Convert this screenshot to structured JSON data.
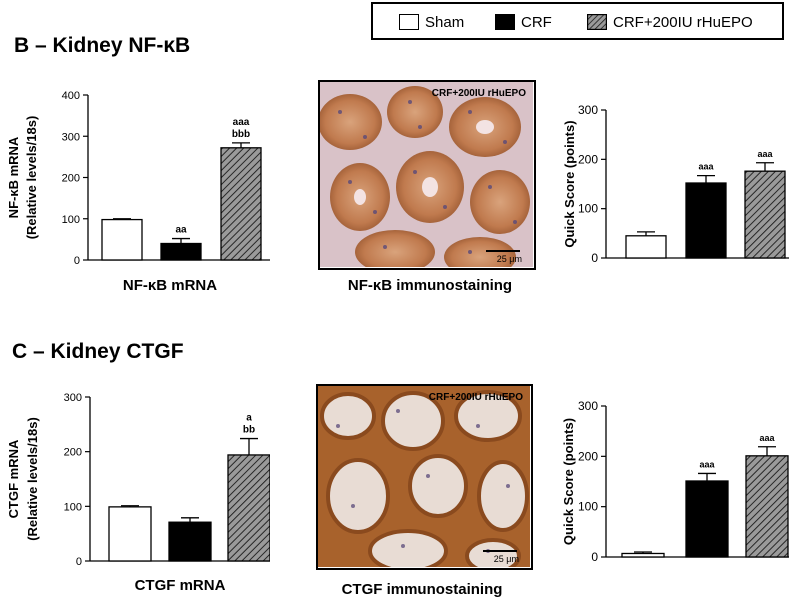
{
  "legend": [
    {
      "label": "Sham",
      "fill": "white"
    },
    {
      "label": "CRF",
      "fill": "black"
    },
    {
      "label": "CRF+200IU rHuEPO",
      "fill": "hatch"
    }
  ],
  "section_b": {
    "title": "B – Kidney NF-κB",
    "mrna_caption": "NF-κB mRNA",
    "stain_caption": "NF-κB immunostaining",
    "micro_label": "CRF+200IU rHuEPO",
    "scale_label": "25 μm"
  },
  "section_c": {
    "title": "C – Kidney CTGF",
    "mrna_caption": "CTGF  mRNA",
    "stain_caption": "CTGF  immunostaining",
    "micro_label": "CRF+200IU rHuEPO",
    "scale_label": "25 μm"
  },
  "colors": {
    "stain_background": "#e9c7b2",
    "stain_dark": "#8a4a1e",
    "stain_tubule": "#c98a5a",
    "stain_nuclei": "#5a4a7a"
  },
  "chart_data": [
    {
      "id": "nfkb_mrna",
      "type": "bar",
      "ylabel": [
        "NF-κB mRNA",
        "(Relative levels/18s)"
      ],
      "ylim": [
        0,
        400
      ],
      "yticks": [
        0,
        100,
        200,
        300,
        400
      ],
      "categories": [
        "Sham",
        "CRF",
        "CRF+200IU rHuEPO"
      ],
      "values": [
        98,
        40,
        272
      ],
      "errors": [
        2,
        12,
        12
      ],
      "fills": [
        "white",
        "black",
        "hatch"
      ],
      "annotations": [
        [],
        [
          "aa"
        ],
        [
          "aaa",
          "bbb"
        ]
      ]
    },
    {
      "id": "nfkb_score",
      "type": "bar",
      "ylabel": [
        "Quick Score (points)"
      ],
      "ylim": [
        0,
        300
      ],
      "yticks": [
        0,
        100,
        200,
        300
      ],
      "categories": [
        "Sham",
        "CRF",
        "CRF+200IU rHuEPO"
      ],
      "values": [
        45,
        152,
        176
      ],
      "errors": [
        8,
        15,
        17
      ],
      "fills": [
        "white",
        "black",
        "hatch"
      ],
      "annotations": [
        [],
        [
          "aaa"
        ],
        [
          "aaa"
        ]
      ]
    },
    {
      "id": "ctgf_mrna",
      "type": "bar",
      "ylabel": [
        "CTGF mRNA",
        "(Relative levels/18s)"
      ],
      "ylim": [
        0,
        300
      ],
      "yticks": [
        0,
        100,
        200,
        300
      ],
      "categories": [
        "Sham",
        "CRF",
        "CRF+200IU rHuEPO"
      ],
      "values": [
        99,
        71,
        194
      ],
      "errors": [
        2,
        8,
        30
      ],
      "fills": [
        "white",
        "black",
        "hatch"
      ],
      "annotations": [
        [],
        [],
        [
          "a",
          "bb"
        ]
      ]
    },
    {
      "id": "ctgf_score",
      "type": "bar",
      "ylabel": [
        "Quick Score (points)"
      ],
      "ylim": [
        0,
        300
      ],
      "yticks": [
        0,
        100,
        200,
        300
      ],
      "categories": [
        "Sham",
        "CRF",
        "CRF+200IU rHuEPO"
      ],
      "values": [
        7,
        151,
        201
      ],
      "errors": [
        3,
        15,
        18
      ],
      "fills": [
        "white",
        "black",
        "hatch"
      ],
      "annotations": [
        [],
        [
          "aaa"
        ],
        [
          "aaa"
        ]
      ]
    }
  ]
}
